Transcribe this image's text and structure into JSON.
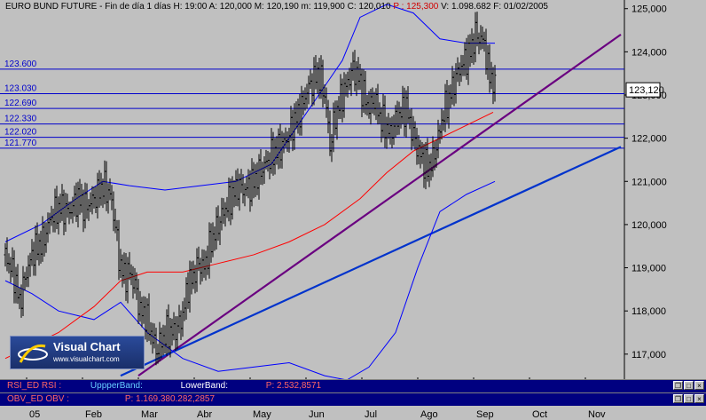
{
  "header": {
    "instrument": "EURO BUND FUTURE",
    "period": "Fin de día 1 días",
    "time": "H: 19:00",
    "open": "A: 120,000",
    "high": "M: 120,190",
    "low": "m: 119,900",
    "close": "C: 120,010",
    "price": "P : 125,300",
    "volume": "V: 1.098.682",
    "date": "F: 01/02/2005"
  },
  "logo": {
    "name": "Visual Chart",
    "url": "www.visualchart.com"
  },
  "panels": [
    {
      "title": "RSI_ED  RSI :",
      "upper": "UppperBand:",
      "lower": "LowerBand:",
      "p": "P: 2.532,8571"
    },
    {
      "title": "OBV_ED  OBV :",
      "p": "P: 1.169.380.282,2857"
    }
  ],
  "colors": {
    "background": "#c0c0c0",
    "candles": "#000000",
    "bands": "#0000ff",
    "moving_average": "#ff0000",
    "trendline_1": "#6a0080",
    "trendline_2": "#0033cc",
    "horizontal_levels": "#0000cc",
    "panel_bg": "#000080"
  },
  "chart_data": {
    "type": "candlestick",
    "title": "EURO BUND FUTURE",
    "xlabel": "",
    "ylabel": "",
    "x_ticks": [
      "05",
      "Feb",
      "Mar",
      "Abr",
      "May",
      "Jun",
      "Jul",
      "Ago",
      "Sep",
      "Oct",
      "Nov"
    ],
    "y_ticks": [
      "117,000",
      "118,000",
      "119,000",
      "120,000",
      "121,000",
      "122,000",
      "123,000",
      "124,000",
      "125,000"
    ],
    "ylim": [
      116.4,
      125.2
    ],
    "last_price_label": "123,120",
    "last_price": 123.12,
    "horizontal_levels": [
      {
        "label": "123.600",
        "value": 123.6
      },
      {
        "label": "123.030",
        "value": 123.03
      },
      {
        "label": "122.690",
        "value": 122.69
      },
      {
        "label": "122.330",
        "value": 122.33
      },
      {
        "label": "122.020",
        "value": 122.02
      },
      {
        "label": "121.770",
        "value": 121.77
      }
    ],
    "price_path": [
      [
        0,
        119.3
      ],
      [
        10,
        118.8
      ],
      [
        16,
        118.2
      ],
      [
        24,
        118.9
      ],
      [
        32,
        119.4
      ],
      [
        42,
        119.6
      ],
      [
        52,
        120.2
      ],
      [
        62,
        120.4
      ],
      [
        72,
        120.3
      ],
      [
        82,
        120.6
      ],
      [
        90,
        120.4
      ],
      [
        100,
        120.6
      ],
      [
        110,
        120.9
      ],
      [
        118,
        120.7
      ],
      [
        124,
        120.0
      ],
      [
        128,
        119.2
      ],
      [
        134,
        118.8
      ],
      [
        140,
        118.9
      ],
      [
        146,
        118.6
      ],
      [
        152,
        118.0
      ],
      [
        158,
        117.9
      ],
      [
        164,
        117.5
      ],
      [
        170,
        117.1
      ],
      [
        176,
        117.3
      ],
      [
        182,
        117.5
      ],
      [
        188,
        117.5
      ],
      [
        194,
        117.6
      ],
      [
        200,
        117.9
      ],
      [
        206,
        118.6
      ],
      [
        212,
        118.8
      ],
      [
        218,
        119.1
      ],
      [
        224,
        119.0
      ],
      [
        232,
        119.6
      ],
      [
        240,
        120.0
      ],
      [
        246,
        120.3
      ],
      [
        254,
        120.6
      ],
      [
        262,
        120.9
      ],
      [
        270,
        120.8
      ],
      [
        280,
        121.0
      ],
      [
        290,
        121.3
      ],
      [
        300,
        121.6
      ],
      [
        310,
        121.8
      ],
      [
        318,
        122.0
      ],
      [
        326,
        122.4
      ],
      [
        334,
        122.7
      ],
      [
        340,
        123.1
      ],
      [
        346,
        123.3
      ],
      [
        352,
        123.5
      ],
      [
        358,
        123.2
      ],
      [
        362,
        122.7
      ],
      [
        366,
        121.8
      ],
      [
        370,
        122.3
      ],
      [
        376,
        122.8
      ],
      [
        384,
        123.2
      ],
      [
        392,
        123.6
      ],
      [
        398,
        123.4
      ],
      [
        404,
        123.0
      ],
      [
        410,
        122.7
      ],
      [
        416,
        122.9
      ],
      [
        422,
        122.5
      ],
      [
        428,
        122.3
      ],
      [
        434,
        122.1
      ],
      [
        440,
        122.4
      ],
      [
        446,
        122.6
      ],
      [
        452,
        122.7
      ],
      [
        458,
        122.2
      ],
      [
        464,
        121.8
      ],
      [
        470,
        121.5
      ],
      [
        476,
        121.3
      ],
      [
        482,
        121.5
      ],
      [
        488,
        122.0
      ],
      [
        494,
        122.6
      ],
      [
        500,
        122.9
      ],
      [
        506,
        123.3
      ],
      [
        512,
        123.6
      ],
      [
        518,
        123.8
      ],
      [
        524,
        124.0
      ],
      [
        530,
        124.4
      ],
      [
        536,
        124.3
      ],
      [
        540,
        124.2
      ],
      [
        544,
        123.6
      ],
      [
        548,
        123.4
      ],
      [
        552,
        123.12
      ]
    ],
    "upper_band": [
      [
        0,
        119.6
      ],
      [
        40,
        120.0
      ],
      [
        80,
        120.6
      ],
      [
        110,
        121.0
      ],
      [
        140,
        120.9
      ],
      [
        180,
        120.8
      ],
      [
        220,
        120.9
      ],
      [
        260,
        121.0
      ],
      [
        300,
        121.4
      ],
      [
        330,
        122.3
      ],
      [
        360,
        123.2
      ],
      [
        380,
        123.8
      ],
      [
        400,
        124.8
      ],
      [
        430,
        125.1
      ],
      [
        460,
        124.9
      ],
      [
        490,
        124.3
      ],
      [
        520,
        124.2
      ],
      [
        540,
        124.2
      ],
      [
        552,
        124.2
      ]
    ],
    "lower_band": [
      [
        0,
        118.7
      ],
      [
        30,
        118.4
      ],
      [
        60,
        118.0
      ],
      [
        100,
        117.8
      ],
      [
        130,
        118.2
      ],
      [
        160,
        117.5
      ],
      [
        200,
        116.9
      ],
      [
        240,
        116.6
      ],
      [
        280,
        116.7
      ],
      [
        320,
        116.8
      ],
      [
        360,
        116.5
      ],
      [
        385,
        116.4
      ],
      [
        410,
        116.7
      ],
      [
        440,
        117.5
      ],
      [
        465,
        119.0
      ],
      [
        490,
        120.3
      ],
      [
        520,
        120.7
      ],
      [
        552,
        121.0
      ]
    ],
    "moving_average": [
      [
        0,
        116.9
      ],
      [
        60,
        117.5
      ],
      [
        100,
        118.1
      ],
      [
        130,
        118.7
      ],
      [
        160,
        118.9
      ],
      [
        200,
        118.9
      ],
      [
        240,
        119.1
      ],
      [
        280,
        119.3
      ],
      [
        320,
        119.6
      ],
      [
        360,
        120.0
      ],
      [
        400,
        120.6
      ],
      [
        430,
        121.2
      ],
      [
        460,
        121.7
      ],
      [
        490,
        122.0
      ],
      [
        520,
        122.3
      ],
      [
        550,
        122.6
      ]
    ],
    "trendlines": [
      {
        "from": [
          150,
          116.5
        ],
        "to": [
          700,
          124.4
        ],
        "color": "trendline_1"
      },
      {
        "from": [
          130,
          116.5
        ],
        "to": [
          700,
          121.8
        ],
        "color": "trendline_2"
      }
    ]
  }
}
